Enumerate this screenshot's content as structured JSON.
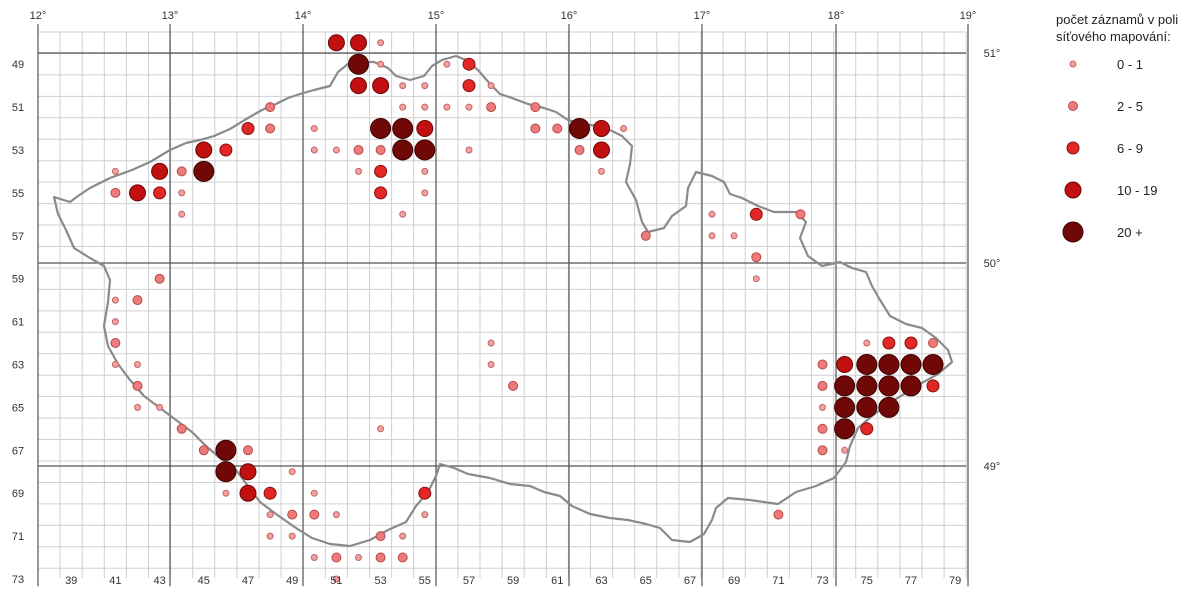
{
  "chart_data": {
    "type": "grid-distribution-map",
    "grid": {
      "columns": [
        "39",
        "41",
        "43",
        "45",
        "47",
        "49",
        "51",
        "53",
        "55",
        "57",
        "59",
        "61",
        "63",
        "65",
        "67",
        "69",
        "71",
        "73",
        "75",
        "77",
        "79"
      ],
      "rows": [
        "49",
        "51",
        "53",
        "55",
        "57",
        "59",
        "61",
        "63",
        "65",
        "67",
        "69",
        "71",
        "73"
      ],
      "col_range": [
        38,
        79
      ],
      "row_range": [
        48,
        73
      ]
    },
    "longitudes": [
      "12°",
      "13°",
      "14°",
      "15°",
      "16°",
      "17°",
      "18°",
      "19°"
    ],
    "latitudes": [
      "51°",
      "50°",
      "49°"
    ],
    "legend": {
      "title_line1": "počet záznamů v poli",
      "title_line2": "síťového mapování:",
      "classes": [
        {
          "label": "0 - 1",
          "color": "#f2a0a0"
        },
        {
          "label": "2 - 5",
          "color": "#ee7b7b"
        },
        {
          "label": "6 - 9",
          "color": "#e32626"
        },
        {
          "label": "10 - 19",
          "color": "#c21010"
        },
        {
          "label": "20 +",
          "color": "#700808"
        }
      ]
    },
    "points": [
      [
        51,
        48,
        3
      ],
      [
        52,
        48,
        3
      ],
      [
        53,
        48,
        0
      ],
      [
        52,
        49,
        4
      ],
      [
        53,
        49,
        0
      ],
      [
        56,
        49,
        0
      ],
      [
        57,
        49,
        2
      ],
      [
        52,
        50,
        3
      ],
      [
        53,
        50,
        3
      ],
      [
        54,
        50,
        0
      ],
      [
        55,
        50,
        0
      ],
      [
        57,
        50,
        2
      ],
      [
        58,
        50,
        0
      ],
      [
        48,
        51,
        1
      ],
      [
        54,
        51,
        0
      ],
      [
        55,
        51,
        0
      ],
      [
        56,
        51,
        0
      ],
      [
        57,
        51,
        0
      ],
      [
        58,
        51,
        1
      ],
      [
        60,
        51,
        1
      ],
      [
        47,
        52,
        2
      ],
      [
        48,
        52,
        1
      ],
      [
        50,
        52,
        0
      ],
      [
        53,
        52,
        4
      ],
      [
        54,
        52,
        4
      ],
      [
        55,
        52,
        3
      ],
      [
        60,
        52,
        1
      ],
      [
        61,
        52,
        1
      ],
      [
        62,
        52,
        4
      ],
      [
        63,
        52,
        3
      ],
      [
        64,
        52,
        0
      ],
      [
        45,
        53,
        3
      ],
      [
        46,
        53,
        2
      ],
      [
        50,
        53,
        0
      ],
      [
        51,
        53,
        0
      ],
      [
        52,
        53,
        1
      ],
      [
        53,
        53,
        1
      ],
      [
        54,
        53,
        4
      ],
      [
        55,
        53,
        4
      ],
      [
        57,
        53,
        0
      ],
      [
        62,
        53,
        1
      ],
      [
        63,
        53,
        3
      ],
      [
        41,
        54,
        0
      ],
      [
        43,
        54,
        3
      ],
      [
        44,
        54,
        1
      ],
      [
        45,
        54,
        4
      ],
      [
        52,
        54,
        0
      ],
      [
        53,
        54,
        2
      ],
      [
        55,
        54,
        0
      ],
      [
        63,
        54,
        0
      ],
      [
        41,
        55,
        1
      ],
      [
        42,
        55,
        3
      ],
      [
        43,
        55,
        2
      ],
      [
        44,
        55,
        0
      ],
      [
        53,
        55,
        2
      ],
      [
        55,
        55,
        0
      ],
      [
        44,
        56,
        0
      ],
      [
        54,
        56,
        0
      ],
      [
        68,
        56,
        0
      ],
      [
        70,
        56,
        2
      ],
      [
        72,
        56,
        1
      ],
      [
        65,
        57,
        1
      ],
      [
        68,
        57,
        0
      ],
      [
        69,
        57,
        0
      ],
      [
        70,
        58,
        1
      ],
      [
        70,
        59,
        0
      ],
      [
        43,
        59,
        1
      ],
      [
        41,
        60,
        0
      ],
      [
        42,
        60,
        1
      ],
      [
        41,
        61,
        0
      ],
      [
        41,
        62,
        1
      ],
      [
        58,
        62,
        0
      ],
      [
        41,
        63,
        0
      ],
      [
        42,
        63,
        0
      ],
      [
        58,
        63,
        0
      ],
      [
        73,
        63,
        1
      ],
      [
        74,
        63,
        3
      ],
      [
        75,
        63,
        4
      ],
      [
        76,
        63,
        4
      ],
      [
        77,
        63,
        4
      ],
      [
        78,
        63,
        4
      ],
      [
        75,
        62,
        0
      ],
      [
        76,
        62,
        2
      ],
      [
        77,
        62,
        2
      ],
      [
        78,
        62,
        1
      ],
      [
        42,
        64,
        1
      ],
      [
        59,
        64,
        1
      ],
      [
        73,
        64,
        1
      ],
      [
        74,
        64,
        4
      ],
      [
        75,
        64,
        4
      ],
      [
        76,
        64,
        4
      ],
      [
        77,
        64,
        4
      ],
      [
        78,
        64,
        2
      ],
      [
        42,
        65,
        0
      ],
      [
        43,
        65,
        0
      ],
      [
        73,
        65,
        0
      ],
      [
        74,
        65,
        4
      ],
      [
        75,
        65,
        4
      ],
      [
        76,
        65,
        4
      ],
      [
        44,
        66,
        1
      ],
      [
        53,
        66,
        0
      ],
      [
        73,
        66,
        1
      ],
      [
        74,
        66,
        4
      ],
      [
        75,
        66,
        2
      ],
      [
        45,
        67,
        1
      ],
      [
        46,
        67,
        4
      ],
      [
        47,
        67,
        1
      ],
      [
        73,
        67,
        1
      ],
      [
        74,
        67,
        0
      ],
      [
        46,
        68,
        4
      ],
      [
        47,
        68,
        3
      ],
      [
        49,
        68,
        0
      ],
      [
        46,
        69,
        0
      ],
      [
        47,
        69,
        3
      ],
      [
        48,
        69,
        2
      ],
      [
        50,
        69,
        0
      ],
      [
        55,
        69,
        2
      ],
      [
        48,
        70,
        0
      ],
      [
        49,
        70,
        1
      ],
      [
        50,
        70,
        1
      ],
      [
        51,
        70,
        0
      ],
      [
        55,
        70,
        0
      ],
      [
        71,
        70,
        1
      ],
      [
        48,
        71,
        0
      ],
      [
        49,
        71,
        0
      ],
      [
        53,
        71,
        1
      ],
      [
        54,
        71,
        0
      ],
      [
        50,
        72,
        0
      ],
      [
        51,
        72,
        1
      ],
      [
        52,
        72,
        0
      ],
      [
        53,
        72,
        1
      ],
      [
        54,
        72,
        1
      ],
      [
        51,
        73,
        0
      ]
    ]
  }
}
